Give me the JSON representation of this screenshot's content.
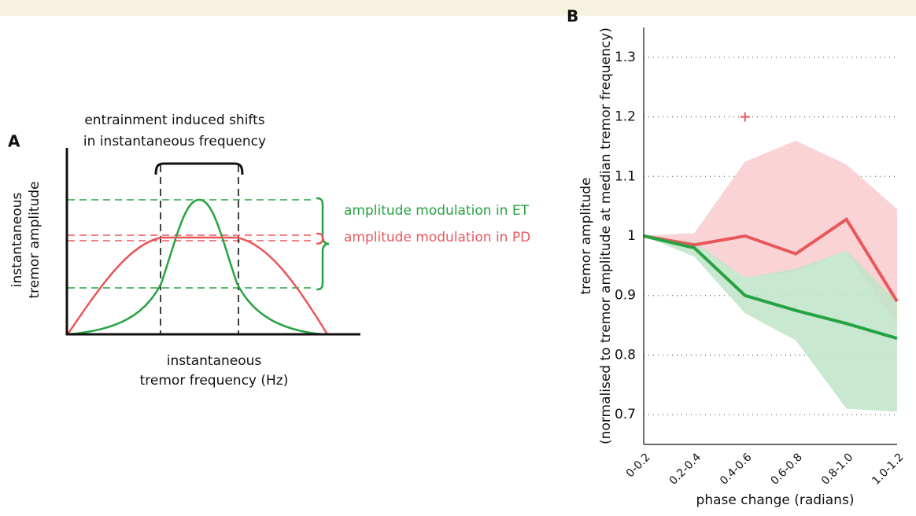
{
  "panel_a": {
    "label": "A",
    "title": [
      "entrainment induced shifts",
      "in instantaneous frequency"
    ],
    "y_label": [
      "instantaneous",
      "tremor amplitude"
    ],
    "x_label": [
      "instantaneous",
      "tremor frequency (Hz)"
    ],
    "et_label": "amplitude modulation in ET",
    "pd_label": "amplitude modulation in PD"
  },
  "chart_data": {
    "type": "line",
    "panel_label": "B",
    "y_label": [
      "tremor amplitude",
      "(normalised to tremor amplitude at median tremor frequency)"
    ],
    "x_label": "phase change (radians)",
    "categories": [
      "0-0.2",
      "0.2-0.4",
      "0.4-0.6",
      "0.6-0.8",
      "0.8-1.0",
      "1.0-1.2"
    ],
    "series": [
      {
        "color": "#e8585b",
        "band_color": "#f9d3d6",
        "values": [
          1.0,
          0.985,
          1.0,
          0.97,
          1.028,
          0.89
        ],
        "upper": [
          1.0,
          1.005,
          1.125,
          1.16,
          1.12,
          1.045
        ],
        "lower": [
          1.0,
          0.985,
          0.93,
          0.94,
          0.975,
          0.85
        ]
      },
      {
        "color": "#27a243",
        "band_color": "#bfe4c8",
        "values": [
          1.0,
          0.98,
          0.9,
          0.875,
          0.853,
          0.828
        ],
        "upper": [
          1.0,
          0.99,
          0.93,
          0.945,
          0.975,
          0.89
        ],
        "lower": [
          1.0,
          0.965,
          0.87,
          0.825,
          0.71,
          0.705
        ]
      }
    ],
    "outliers": {
      "x": [
        "0.4-0.6"
      ],
      "values": [
        1.2
      ],
      "color": "#e8585b"
    },
    "ylim": [
      0.65,
      1.35
    ],
    "yticks": [
      0.7,
      0.8,
      0.9,
      1,
      1.1,
      1.2,
      1.3
    ],
    "grid": true
  }
}
